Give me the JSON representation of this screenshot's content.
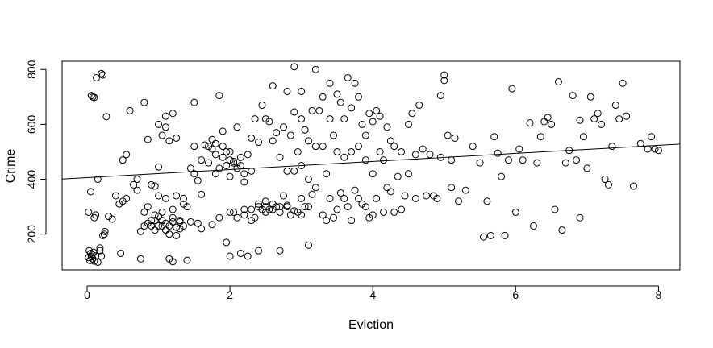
{
  "chart_data": {
    "type": "scatter",
    "xlabel": "Eviction",
    "ylabel": "Crime",
    "xlim": [
      -0.35,
      8.3
    ],
    "ylim": [
      70,
      830
    ],
    "x_ticks": [
      "0",
      "2",
      "4",
      "6",
      "8"
    ],
    "y_ticks": [
      "200",
      "400",
      "600",
      "800"
    ],
    "grid": false,
    "legend": "none",
    "marker": "open-circle",
    "trend_line": {
      "type": "linear",
      "intercept": 406,
      "slope": 14.7
    },
    "colors": {
      "points": "#000000",
      "line": "#000000",
      "background": "#ffffff"
    },
    "points": [
      [
        0.02,
        115
      ],
      [
        0.04,
        104
      ],
      [
        0.06,
        118
      ],
      [
        0.08,
        110
      ],
      [
        0.1,
        102
      ],
      [
        0.12,
        121
      ],
      [
        0.03,
        140
      ],
      [
        0.05,
        130
      ],
      [
        0.07,
        126
      ],
      [
        0.09,
        134
      ],
      [
        0.02,
        280
      ],
      [
        0.05,
        355
      ],
      [
        0.1,
        260
      ],
      [
        0.12,
        270
      ],
      [
        0.15,
        400
      ],
      [
        0.18,
        150
      ],
      [
        0.2,
        120
      ],
      [
        0.22,
        195
      ],
      [
        0.24,
        200
      ],
      [
        0.25,
        210
      ],
      [
        0.06,
        705
      ],
      [
        0.08,
        700
      ],
      [
        0.1,
        698
      ],
      [
        0.13,
        770
      ],
      [
        0.2,
        785
      ],
      [
        0.22,
        780
      ],
      [
        0.27,
        628
      ],
      [
        0.15,
        98
      ],
      [
        0.18,
        140
      ],
      [
        0.3,
        265
      ],
      [
        0.35,
        255
      ],
      [
        0.4,
        340
      ],
      [
        0.45,
        310
      ],
      [
        0.47,
        130
      ],
      [
        0.5,
        320
      ],
      [
        0.5,
        470
      ],
      [
        0.55,
        490
      ],
      [
        0.55,
        330
      ],
      [
        0.6,
        650
      ],
      [
        0.65,
        380
      ],
      [
        0.7,
        400
      ],
      [
        0.7,
        360
      ],
      [
        0.75,
        110
      ],
      [
        0.75,
        210
      ],
      [
        0.8,
        680
      ],
      [
        0.8,
        230
      ],
      [
        0.85,
        545
      ],
      [
        0.85,
        240
      ],
      [
        0.9,
        380
      ],
      [
        0.95,
        375
      ],
      [
        0.95,
        250
      ],
      [
        1.0,
        445
      ],
      [
        1.0,
        600
      ],
      [
        1.0,
        340
      ],
      [
        1.05,
        560
      ],
      [
        1.05,
        230
      ],
      [
        1.1,
        630
      ],
      [
        1.1,
        590
      ],
      [
        1.1,
        330
      ],
      [
        1.15,
        110
      ],
      [
        1.15,
        540
      ],
      [
        1.2,
        640
      ],
      [
        1.2,
        290
      ],
      [
        1.2,
        100
      ],
      [
        1.25,
        550
      ],
      [
        1.25,
        340
      ],
      [
        1.3,
        245
      ],
      [
        1.3,
        220
      ],
      [
        1.35,
        330
      ],
      [
        1.35,
        310
      ],
      [
        1.4,
        300
      ],
      [
        1.4,
        105
      ],
      [
        1.45,
        440
      ],
      [
        1.45,
        245
      ],
      [
        1.5,
        680
      ],
      [
        1.5,
        420
      ],
      [
        1.55,
        395
      ],
      [
        1.55,
        240
      ],
      [
        1.6,
        345
      ],
      [
        1.6,
        220
      ],
      [
        0.9,
        250
      ],
      [
        0.95,
        270
      ],
      [
        1.0,
        230
      ],
      [
        1.05,
        280
      ],
      [
        1.1,
        215
      ],
      [
        1.15,
        200
      ],
      [
        1.2,
        260
      ],
      [
        1.25,
        195
      ],
      [
        1.3,
        250
      ],
      [
        1.35,
        230
      ],
      [
        0.8,
        280
      ],
      [
        0.85,
        300
      ],
      [
        0.9,
        230
      ],
      [
        0.95,
        215
      ],
      [
        1.0,
        265
      ],
      [
        1.05,
        250
      ],
      [
        1.1,
        240
      ],
      [
        1.15,
        230
      ],
      [
        1.2,
        245
      ],
      [
        1.25,
        225
      ],
      [
        1.5,
        520
      ],
      [
        1.6,
        470
      ],
      [
        1.65,
        525
      ],
      [
        1.7,
        460
      ],
      [
        1.75,
        545
      ],
      [
        1.75,
        235
      ],
      [
        1.8,
        490
      ],
      [
        1.8,
        420
      ],
      [
        1.85,
        440
      ],
      [
        1.85,
        260
      ],
      [
        1.9,
        575
      ],
      [
        1.9,
        480
      ],
      [
        1.95,
        450
      ],
      [
        1.95,
        170
      ],
      [
        2.0,
        500
      ],
      [
        2.0,
        410
      ],
      [
        2.0,
        280
      ],
      [
        2.0,
        120
      ],
      [
        2.05,
        465
      ],
      [
        2.05,
        280
      ],
      [
        2.1,
        590
      ],
      [
        2.1,
        460
      ],
      [
        2.1,
        260
      ],
      [
        2.15,
        480
      ],
      [
        2.15,
        130
      ],
      [
        2.2,
        420
      ],
      [
        2.2,
        390
      ],
      [
        2.2,
        270
      ],
      [
        2.25,
        490
      ],
      [
        2.25,
        120
      ],
      [
        1.85,
        705
      ],
      [
        1.7,
        520
      ],
      [
        1.75,
        510
      ],
      [
        1.8,
        530
      ],
      [
        1.9,
        520
      ],
      [
        1.95,
        500
      ],
      [
        2.0,
        470
      ],
      [
        2.05,
        460
      ],
      [
        2.1,
        440
      ],
      [
        2.15,
        450
      ],
      [
        2.3,
        550
      ],
      [
        2.3,
        430
      ],
      [
        2.3,
        250
      ],
      [
        2.35,
        620
      ],
      [
        2.35,
        260
      ],
      [
        2.4,
        535
      ],
      [
        2.4,
        300
      ],
      [
        2.4,
        140
      ],
      [
        2.45,
        670
      ],
      [
        2.45,
        290
      ],
      [
        2.5,
        620
      ],
      [
        2.5,
        320
      ],
      [
        2.5,
        280
      ],
      [
        2.55,
        610
      ],
      [
        2.55,
        290
      ],
      [
        2.6,
        740
      ],
      [
        2.6,
        540
      ],
      [
        2.6,
        290
      ],
      [
        2.65,
        570
      ],
      [
        2.65,
        300
      ],
      [
        2.7,
        480
      ],
      [
        2.7,
        300
      ],
      [
        2.7,
        140
      ],
      [
        2.75,
        590
      ],
      [
        2.75,
        340
      ],
      [
        2.8,
        720
      ],
      [
        2.8,
        430
      ],
      [
        2.8,
        300
      ],
      [
        2.85,
        560
      ],
      [
        2.85,
        270
      ],
      [
        2.9,
        810
      ],
      [
        2.9,
        645
      ],
      [
        2.9,
        430
      ],
      [
        2.95,
        500
      ],
      [
        2.95,
        280
      ],
      [
        3.0,
        720
      ],
      [
        3.0,
        620
      ],
      [
        3.0,
        450
      ],
      [
        3.0,
        330
      ],
      [
        3.05,
        580
      ],
      [
        3.05,
        300
      ],
      [
        3.1,
        540
      ],
      [
        3.1,
        400
      ],
      [
        3.1,
        160
      ],
      [
        3.15,
        650
      ],
      [
        3.15,
        345
      ],
      [
        3.2,
        800
      ],
      [
        3.2,
        520
      ],
      [
        3.2,
        370
      ],
      [
        3.25,
        650
      ],
      [
        2.2,
        290
      ],
      [
        2.3,
        290
      ],
      [
        2.4,
        310
      ],
      [
        2.5,
        300
      ],
      [
        2.6,
        310
      ],
      [
        2.7,
        280
      ],
      [
        2.8,
        305
      ],
      [
        2.9,
        285
      ],
      [
        3.0,
        270
      ],
      [
        3.1,
        300
      ],
      [
        3.3,
        700
      ],
      [
        3.3,
        520
      ],
      [
        3.3,
        270
      ],
      [
        3.35,
        420
      ],
      [
        3.35,
        250
      ],
      [
        3.4,
        750
      ],
      [
        3.4,
        620
      ],
      [
        3.4,
        330
      ],
      [
        3.45,
        560
      ],
      [
        3.45,
        260
      ],
      [
        3.5,
        710
      ],
      [
        3.5,
        500
      ],
      [
        3.5,
        290
      ],
      [
        3.55,
        680
      ],
      [
        3.55,
        350
      ],
      [
        3.6,
        620
      ],
      [
        3.6,
        480
      ],
      [
        3.6,
        330
      ],
      [
        3.65,
        770
      ],
      [
        3.65,
        300
      ],
      [
        3.7,
        660
      ],
      [
        3.7,
        500
      ],
      [
        3.7,
        250
      ],
      [
        3.75,
        750
      ],
      [
        3.75,
        360
      ],
      [
        3.8,
        700
      ],
      [
        3.8,
        520
      ],
      [
        3.8,
        330
      ],
      [
        3.85,
        600
      ],
      [
        3.85,
        310
      ],
      [
        3.9,
        560
      ],
      [
        3.9,
        470
      ],
      [
        3.9,
        300
      ],
      [
        3.95,
        640
      ],
      [
        3.95,
        260
      ],
      [
        4.0,
        610
      ],
      [
        4.0,
        420
      ],
      [
        4.0,
        270
      ],
      [
        4.05,
        650
      ],
      [
        4.05,
        330
      ],
      [
        4.1,
        630
      ],
      [
        4.1,
        500
      ],
      [
        4.15,
        470
      ],
      [
        4.15,
        280
      ],
      [
        4.2,
        590
      ],
      [
        4.2,
        370
      ],
      [
        4.25,
        540
      ],
      [
        4.25,
        355
      ],
      [
        4.3,
        520
      ],
      [
        4.3,
        280
      ],
      [
        4.35,
        410
      ],
      [
        4.4,
        500
      ],
      [
        4.4,
        290
      ],
      [
        4.45,
        340
      ],
      [
        4.5,
        600
      ],
      [
        4.5,
        420
      ],
      [
        4.55,
        640
      ],
      [
        4.6,
        490
      ],
      [
        4.6,
        330
      ],
      [
        4.65,
        670
      ],
      [
        4.7,
        510
      ],
      [
        4.75,
        340
      ],
      [
        4.8,
        490
      ],
      [
        4.85,
        340
      ],
      [
        4.9,
        330
      ],
      [
        4.95,
        705
      ],
      [
        4.95,
        480
      ],
      [
        5.0,
        760
      ],
      [
        5.0,
        780
      ],
      [
        5.05,
        560
      ],
      [
        5.1,
        470
      ],
      [
        5.1,
        370
      ],
      [
        5.15,
        550
      ],
      [
        5.2,
        320
      ],
      [
        5.3,
        360
      ],
      [
        5.4,
        520
      ],
      [
        5.5,
        460
      ],
      [
        5.55,
        190
      ],
      [
        5.6,
        320
      ],
      [
        5.65,
        195
      ],
      [
        5.7,
        555
      ],
      [
        5.75,
        495
      ],
      [
        5.8,
        410
      ],
      [
        5.85,
        195
      ],
      [
        5.9,
        470
      ],
      [
        5.95,
        730
      ],
      [
        6.0,
        280
      ],
      [
        6.05,
        510
      ],
      [
        6.1,
        470
      ],
      [
        6.2,
        605
      ],
      [
        6.25,
        230
      ],
      [
        6.3,
        460
      ],
      [
        6.35,
        555
      ],
      [
        6.4,
        610
      ],
      [
        6.45,
        625
      ],
      [
        6.5,
        600
      ],
      [
        6.55,
        290
      ],
      [
        6.6,
        755
      ],
      [
        6.65,
        215
      ],
      [
        6.7,
        460
      ],
      [
        6.75,
        505
      ],
      [
        6.8,
        705
      ],
      [
        6.85,
        470
      ],
      [
        6.9,
        615
      ],
      [
        6.9,
        260
      ],
      [
        6.95,
        555
      ],
      [
        7.0,
        440
      ],
      [
        7.05,
        700
      ],
      [
        7.1,
        620
      ],
      [
        7.15,
        640
      ],
      [
        7.2,
        600
      ],
      [
        7.25,
        400
      ],
      [
        7.3,
        380
      ],
      [
        7.35,
        520
      ],
      [
        7.4,
        670
      ],
      [
        7.45,
        620
      ],
      [
        7.5,
        750
      ],
      [
        7.55,
        630
      ],
      [
        7.65,
        375
      ],
      [
        7.75,
        530
      ],
      [
        7.85,
        510
      ],
      [
        7.9,
        555
      ],
      [
        7.95,
        510
      ],
      [
        8.0,
        505
      ]
    ]
  }
}
